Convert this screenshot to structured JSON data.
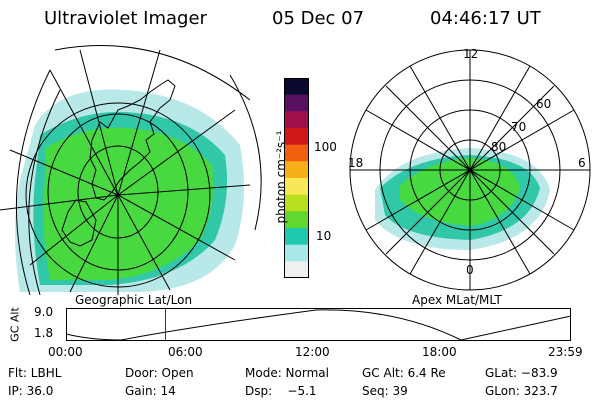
{
  "header": {
    "title": "Ultraviolet Imager",
    "date": "05 Dec 07",
    "time": "04:46:17 UT"
  },
  "colorbar": {
    "label": "photon cm⁻²s⁻¹",
    "ticks": [
      {
        "label": "100",
        "value": 100
      },
      {
        "label": "10",
        "value": 10
      }
    ],
    "colors": [
      "#0a0a30",
      "#5a1060",
      "#a0104a",
      "#d01818",
      "#f06010",
      "#f8b018",
      "#f8e858",
      "#b8e020",
      "#60d830",
      "#20c8b0",
      "#a8e8e8",
      "#f0f0f0"
    ]
  },
  "left_panel": {
    "projection_label": "Geographic Lat/Lon"
  },
  "right_panel": {
    "projection_label": "Apex MLat/MLT",
    "mlt_labels": {
      "top": "12",
      "right": "6",
      "bottom": "0",
      "left": "18"
    },
    "lat_labels": [
      "60",
      "70",
      "80"
    ]
  },
  "altitude_plot": {
    "ylabel": "GC Alt",
    "ytick_labels": [
      "9.0",
      "1.8"
    ],
    "xtick_labels": [
      "00:00",
      "06:00",
      "12:00",
      "18:00",
      "23:59"
    ],
    "current_time_fraction": 0.197
  },
  "status": {
    "row1": [
      "Flt: LBHL",
      "Door: Open",
      "Mode: Normal",
      "GC Alt: 6.4 Re",
      "GLat: −83.9"
    ],
    "row2": [
      "IP: 36.0",
      "Gain: 14",
      "Dsp:    −5.1",
      "Seq: 39",
      "GLon: 323.7"
    ]
  },
  "colors": {
    "aurora_bright": "#48d840",
    "aurora_mid": "#30c8a8",
    "aurora_faint": "#b8e8e8",
    "marker": "#c00000"
  }
}
